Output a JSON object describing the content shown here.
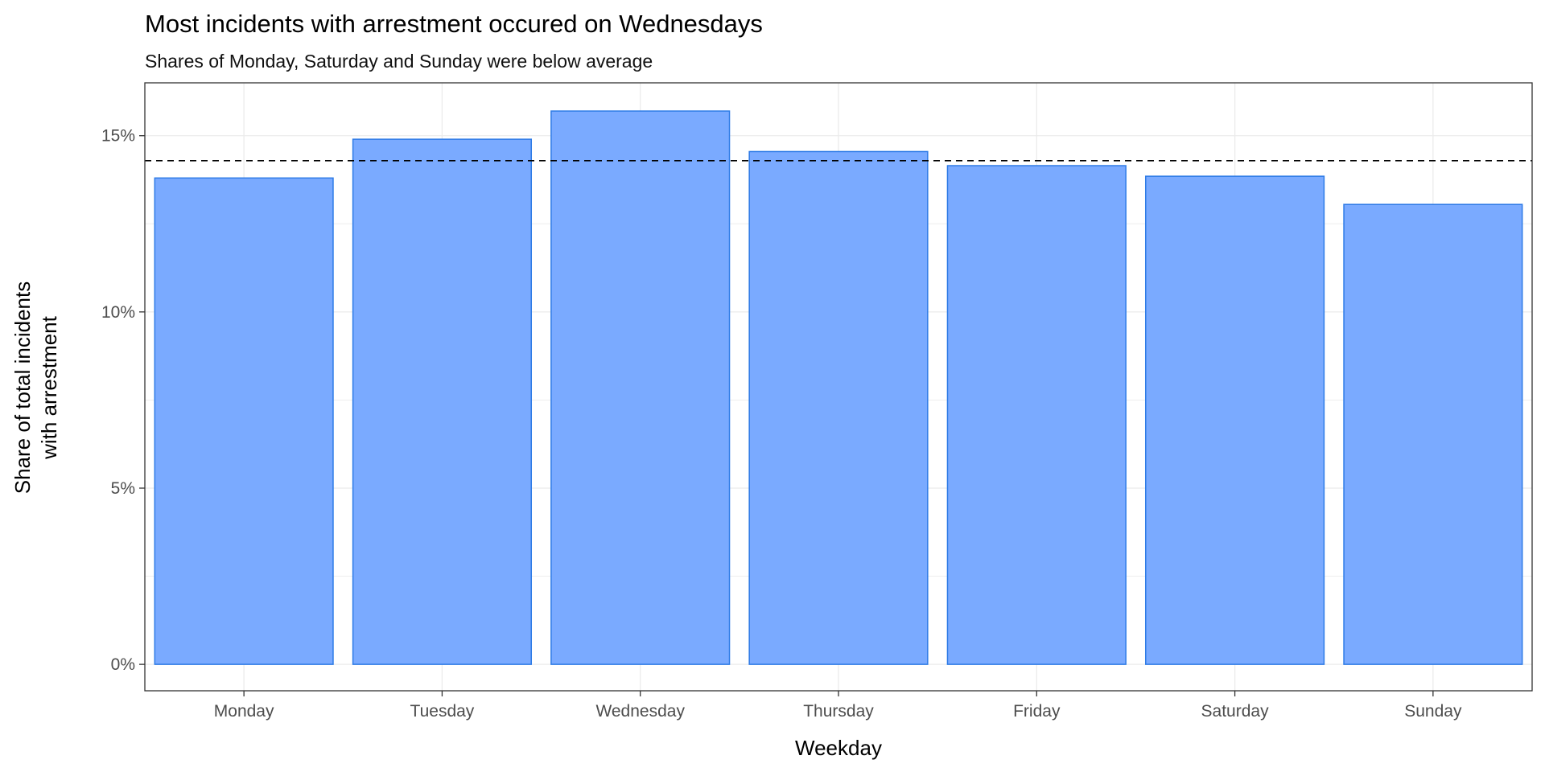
{
  "chart_data": {
    "type": "bar",
    "title": "Most incidents with arrestment occured on Wednesdays",
    "subtitle": "Shares of Monday, Saturday and Sunday were below average",
    "xlabel": "Weekday",
    "ylabel_lines": [
      "Share of total incidents",
      "with arrestment"
    ],
    "categories": [
      "Monday",
      "Tuesday",
      "Wednesday",
      "Thursday",
      "Friday",
      "Saturday",
      "Sunday"
    ],
    "values": [
      13.8,
      14.9,
      15.7,
      14.55,
      14.15,
      13.85,
      13.05
    ],
    "average": 14.29,
    "ylim": [
      -0.75,
      16.5
    ],
    "yticks": [
      0,
      5,
      10,
      15
    ],
    "ytick_labels": [
      "0%",
      "5%",
      "10%",
      "15%"
    ],
    "grid": true,
    "colors": {
      "bar_fill": "#7aaaff",
      "bar_stroke": "#2e7be6",
      "average_line": "#000000",
      "grid": "#ebebeb"
    }
  }
}
